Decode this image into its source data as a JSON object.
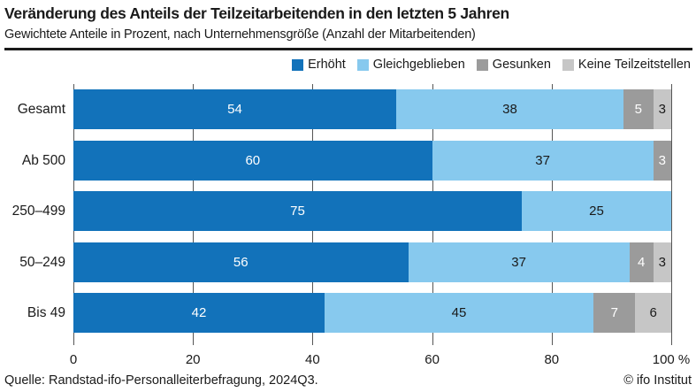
{
  "header": {
    "title": "Veränderung des Anteils der Teilzeitarbeitenden in den letzten 5 Jahren",
    "subtitle": "Gewichtete Anteile in Prozent, nach Unternehmensgröße (Anzahl der Mitarbeitenden)"
  },
  "legend": [
    {
      "label": "Erhöht",
      "color": "#1272ba"
    },
    {
      "label": "Gleichgeblieben",
      "color": "#87c9ee"
    },
    {
      "label": "Gesunken",
      "color": "#9b9b9b"
    },
    {
      "label": "Keine Teilzeitstellen",
      "color": "#c6c6c6"
    }
  ],
  "chart_data": {
    "type": "bar",
    "orientation": "horizontal",
    "stacked": true,
    "title": "Veränderung des Anteils der Teilzeitarbeitenden in den letzten 5 Jahren",
    "subtitle": "Gewichtete Anteile in Prozent, nach Unternehmensgröße (Anzahl der Mitarbeitenden)",
    "categories": [
      "Gesamt",
      "Ab 500",
      "250–499",
      "50–249",
      "Bis 49"
    ],
    "series": [
      {
        "name": "Erhöht",
        "color": "#1272ba",
        "label_color": "#ffffff",
        "values": [
          54,
          60,
          75,
          56,
          42
        ]
      },
      {
        "name": "Gleichgeblieben",
        "color": "#87c9ee",
        "label_color": "#1a1a1a",
        "values": [
          38,
          37,
          25,
          37,
          45
        ]
      },
      {
        "name": "Gesunken",
        "color": "#9b9b9b",
        "label_color": "#ffffff",
        "values": [
          5,
          3,
          0,
          4,
          7
        ]
      },
      {
        "name": "Keine Teilzeitstellen",
        "color": "#c6c6c6",
        "label_color": "#1a1a1a",
        "values": [
          3,
          0,
          0,
          3,
          6
        ]
      }
    ],
    "xlim": [
      0,
      100
    ],
    "x_ticks": [
      0,
      20,
      40,
      60,
      80,
      100
    ],
    "x_tick_labels": [
      "0",
      "20",
      "40",
      "60",
      "80",
      "100 %"
    ],
    "grid": true,
    "gridline_color": "#555555",
    "legend_position": "top-right",
    "value_labels": "inside-center"
  },
  "footer": {
    "source": "Quelle: Randstad-ifo-Personalleiterbefragung, 2024Q3.",
    "copyright": "© ifo Institut"
  }
}
